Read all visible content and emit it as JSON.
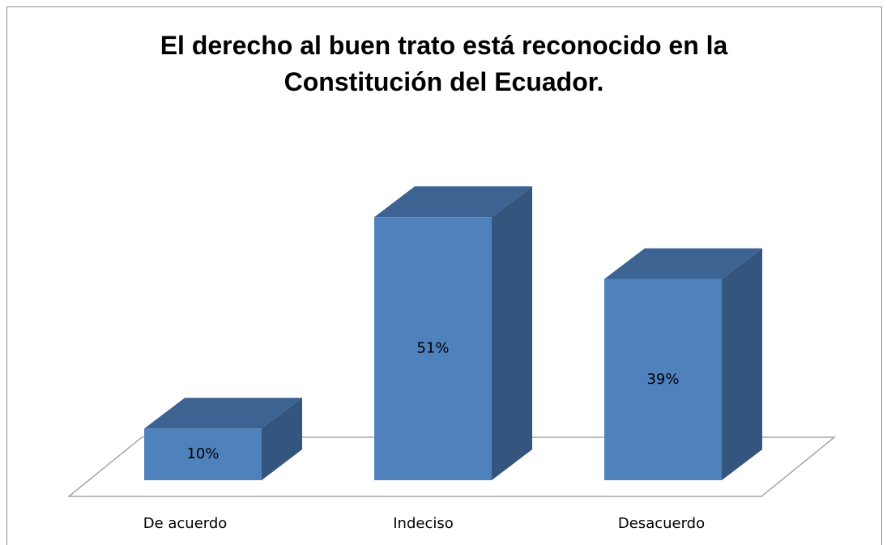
{
  "chart_data": {
    "type": "bar3d",
    "title": "El derecho al buen trato está reconocido en la Constitución del Ecuador.",
    "categories": [
      "De acuerdo",
      "Indeciso",
      "Desacuerdo"
    ],
    "values": [
      10,
      51,
      39
    ],
    "value_labels": [
      "10%",
      "51%",
      "39%"
    ],
    "color": "#4f81bd"
  }
}
